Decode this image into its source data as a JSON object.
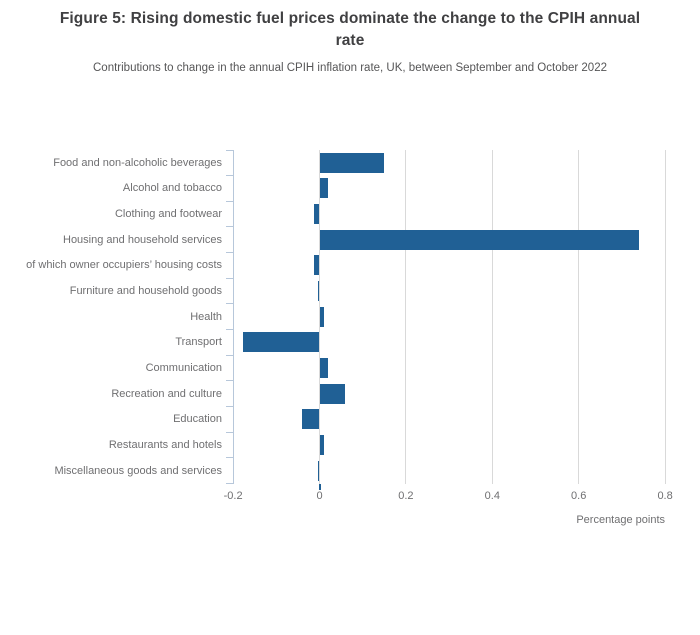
{
  "chart_data": {
    "type": "bar",
    "orientation": "horizontal",
    "title": "Figure 5: Rising domestic fuel prices dominate the change to the CPIH annual rate",
    "subtitle": "Contributions to change in the annual CPIH inflation rate, UK, between September and October 2022",
    "categories": [
      "Food and non-alcoholic beverages",
      "Alcohol and tobacco",
      "Clothing and footwear",
      "Housing and household services",
      "of which owner occupiers’ housing costs",
      "Furniture and household goods",
      "Health",
      "Transport",
      "Communication",
      "Recreation and culture",
      "Education",
      "Restaurants and hotels",
      "Miscellaneous goods and services"
    ],
    "values": [
      0.15,
      0.02,
      -0.012,
      0.74,
      -0.012,
      -0.004,
      0.011,
      -0.178,
      0.02,
      0.06,
      -0.04,
      0.011,
      -0.003
    ],
    "xlabel": "Percentage points",
    "x_ticks": [
      -0.2,
      0,
      0.2,
      0.4,
      0.6,
      0.8
    ],
    "x_tick_labels": [
      "-0.2",
      "0",
      "0.2",
      "0.4",
      "0.6",
      "0.8"
    ],
    "xlim": [
      -0.2,
      0.82
    ],
    "grid": true,
    "legend": "none",
    "colors": {
      "bar": "#206095",
      "gridline": "#d9d9d9",
      "y_axis": "#b7c7da",
      "zero_tick": "#206095",
      "title_text": "#404042",
      "subtitle_text": "#565657",
      "label_text": "#6f6f71"
    }
  }
}
